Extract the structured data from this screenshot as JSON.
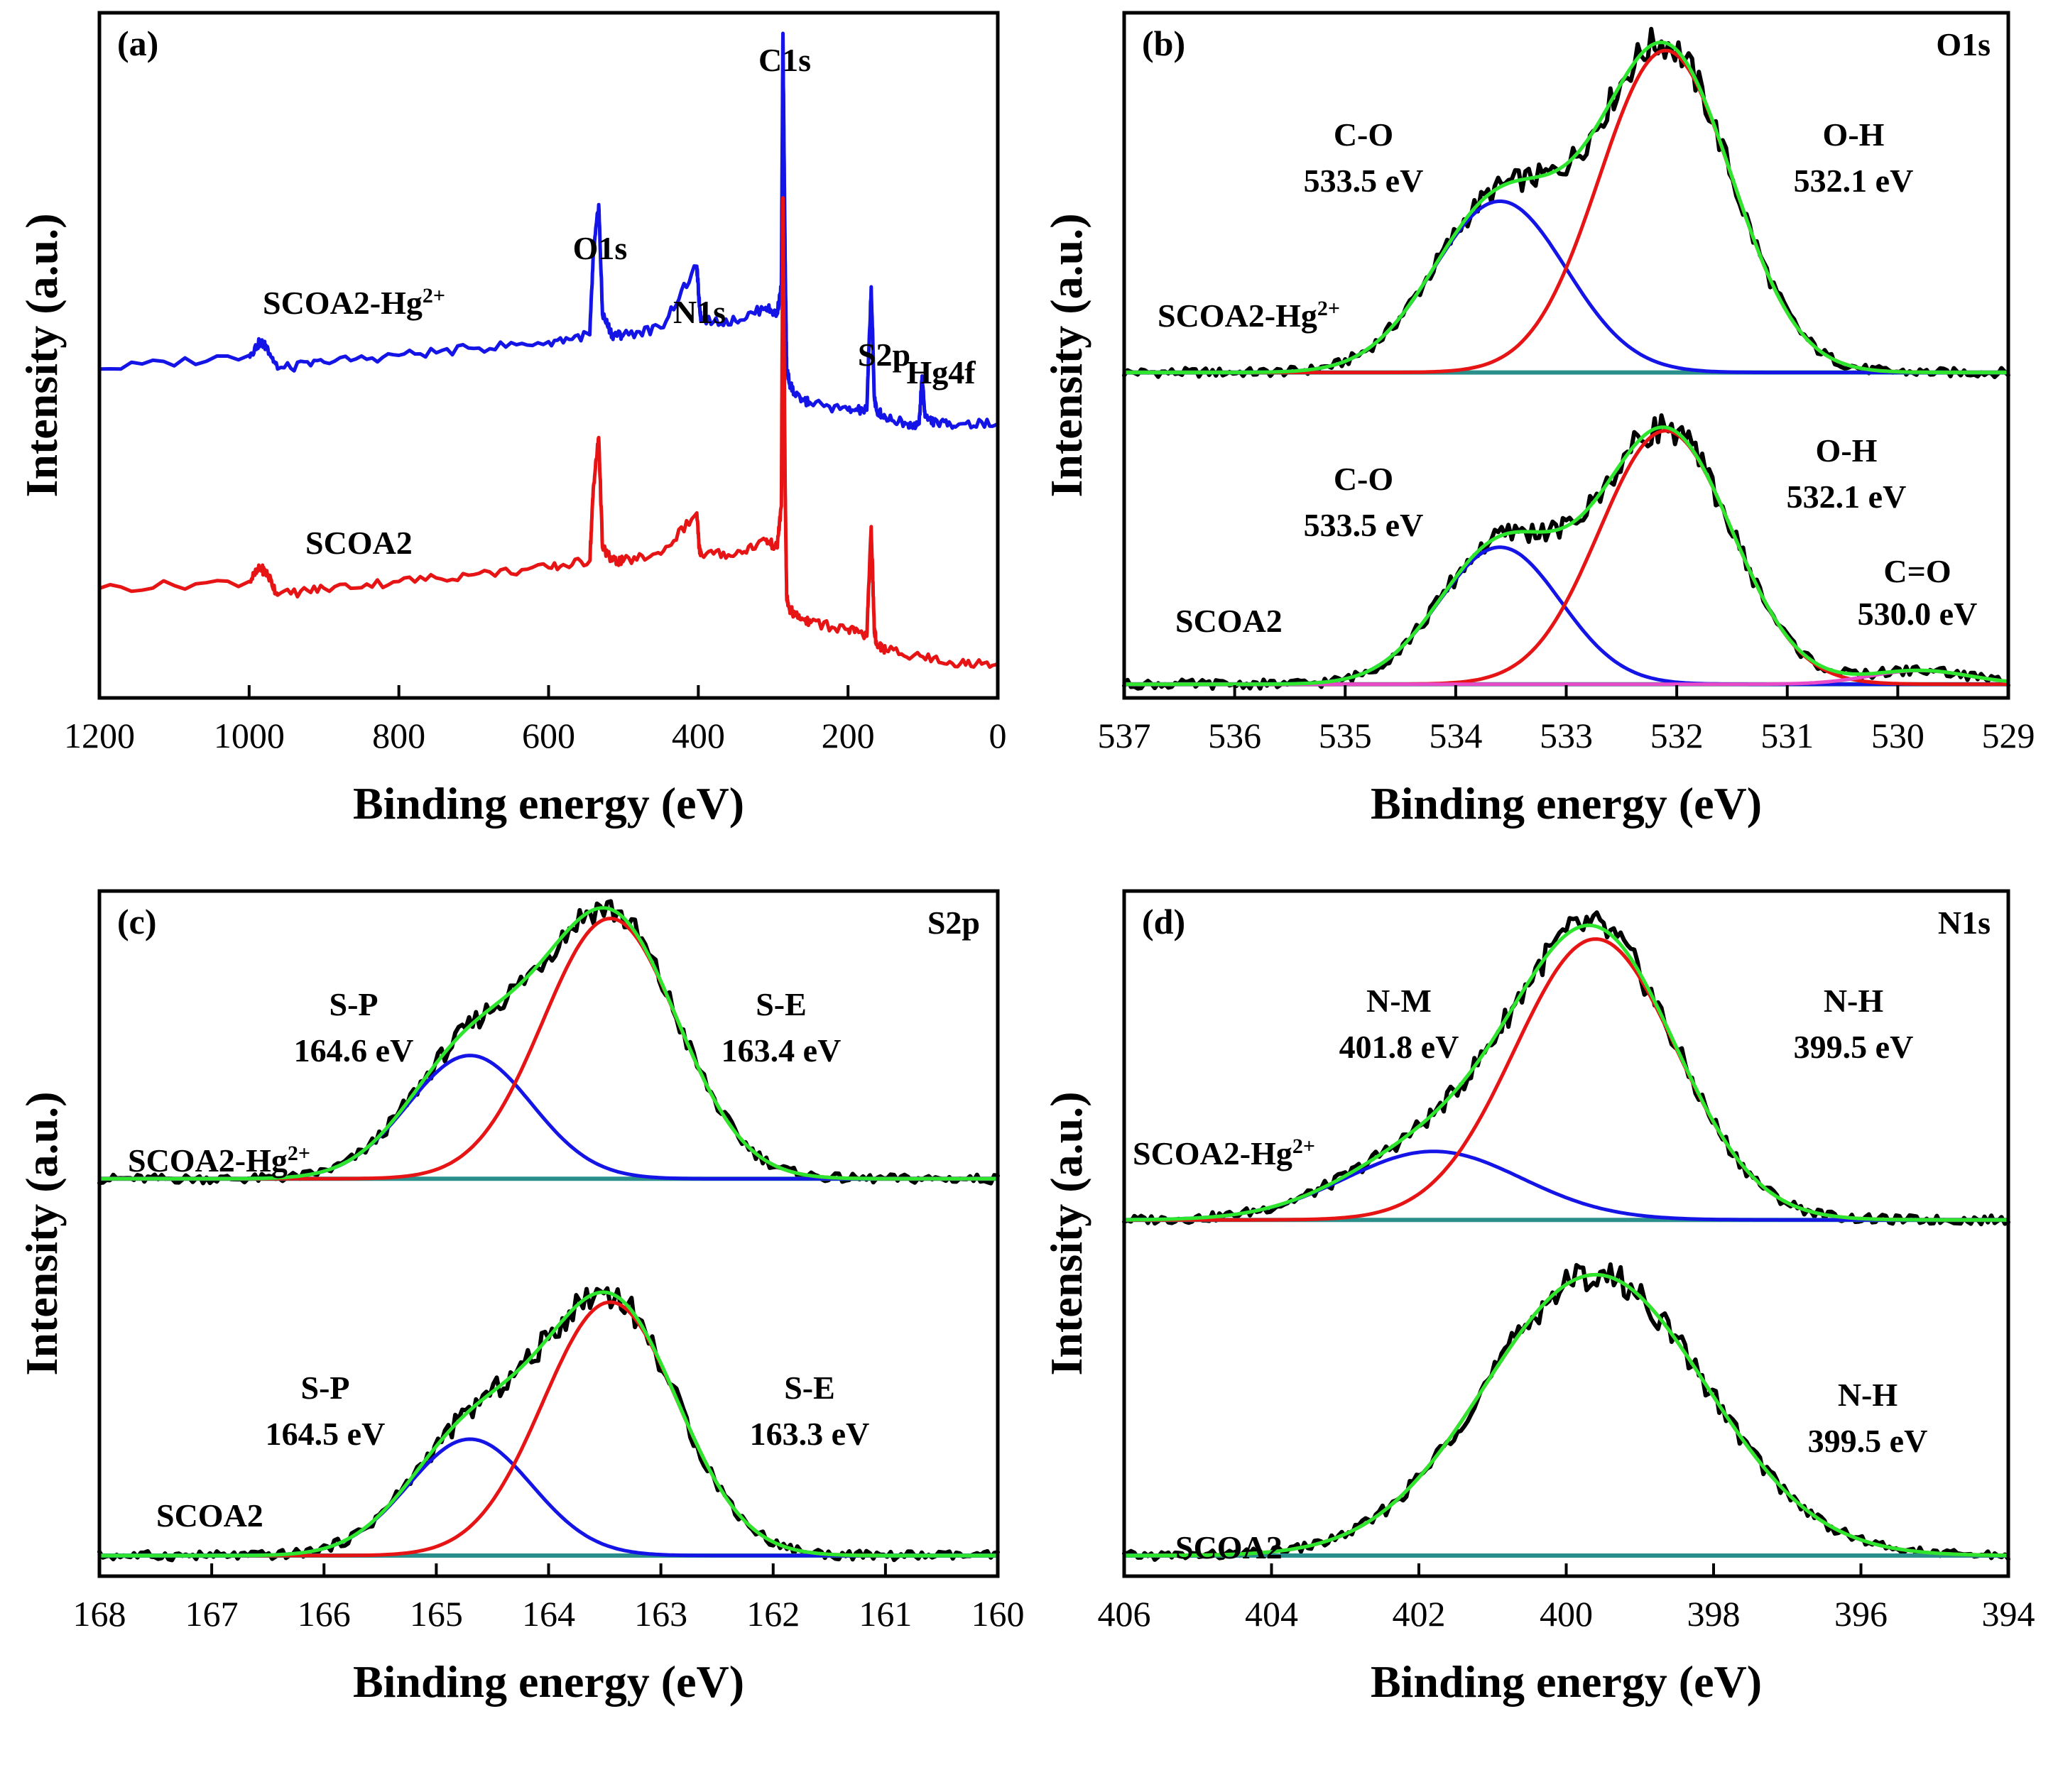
{
  "figure": {
    "xlabel": "Binding energy (eV)",
    "ylabel": "Intensity (a.u.)"
  },
  "chart_data": [
    {
      "type": "line",
      "panel": "(a)",
      "corner_label": "",
      "xlabel": "Binding energy (eV)",
      "ylabel": "Intensity (a.u.)",
      "xlim": [
        1200,
        0
      ],
      "ylim": [
        0,
        100
      ],
      "xticks": [
        "1200",
        "1000",
        "800",
        "600",
        "400",
        "200",
        "0"
      ],
      "annotations": [
        {
          "text": "C1s",
          "x": 285,
          "y": 97
        },
        {
          "text": "O1s",
          "x": 532,
          "y": 72
        },
        {
          "text": "N1s",
          "x": 400,
          "y": 63
        },
        {
          "text": "S2p",
          "x": 168,
          "y": 58
        },
        {
          "text": "Hg4f",
          "x": 101,
          "y": 52
        }
      ],
      "series": [
        {
          "name": "SCOA2-Hg²⁺",
          "color": "#1414e6",
          "x": [
            1200,
            1000,
            985,
            975,
            962,
            900,
            800,
            700,
            600,
            545,
            540,
            533,
            528,
            515,
            500,
            450,
            402,
            399,
            396,
            350,
            310,
            295,
            289,
            287,
            284,
            282,
            278,
            270,
            250,
            200,
            175,
            169,
            165,
            162,
            150,
            120,
            105,
            101,
            97,
            80,
            50,
            0
          ],
          "y": [
            48,
            50,
            52,
            51,
            48,
            49,
            50,
            51,
            52,
            53,
            65,
            72,
            56,
            53,
            53,
            54,
            63,
            58,
            55,
            55,
            57,
            56,
            60,
            97,
            64,
            48,
            46,
            44,
            43,
            42,
            42,
            60,
            44,
            42,
            41,
            40,
            40,
            47,
            41,
            40,
            40,
            40
          ]
        },
        {
          "name": "SCOA2",
          "color": "#e61414",
          "x": [
            1200,
            1000,
            985,
            975,
            962,
            900,
            800,
            700,
            600,
            545,
            540,
            533,
            528,
            515,
            500,
            450,
            402,
            399,
            396,
            350,
            310,
            295,
            289,
            287,
            284,
            282,
            278,
            270,
            250,
            200,
            175,
            169,
            165,
            162,
            150,
            100,
            50,
            0
          ],
          "y": [
            16,
            17,
            19,
            18,
            15,
            16,
            17,
            18,
            19,
            20,
            31,
            38,
            22,
            20,
            20,
            21,
            27,
            22,
            21,
            21,
            23,
            22,
            28,
            73,
            31,
            15,
            13,
            12,
            11,
            10,
            9,
            25,
            10,
            8,
            7,
            6,
            5,
            5
          ]
        }
      ],
      "curve_labels": [
        {
          "text": "SCOA2-Hg",
          "sup": "2+",
          "x": 940,
          "y": 57
        },
        {
          "text": "SCOA2",
          "x": 900,
          "y": 26
        }
      ]
    },
    {
      "type": "line",
      "panel": "(b)",
      "corner_label": "O1s",
      "xlabel": "Binding energy (eV)",
      "ylabel": "Intensity (a.u.)",
      "xlim": [
        537,
        529
      ],
      "ylim": [
        0,
        100
      ],
      "xticks": [
        "537",
        "536",
        "535",
        "534",
        "533",
        "532",
        "531",
        "530",
        "529"
      ],
      "stacks": [
        {
          "baseline": 47.5,
          "label": {
            "text": "SCOA2-Hg",
            "sup": "2+"
          },
          "peaks": [
            {
              "name": "C-O",
              "label": "C-O",
              "energy": "533.5 eV",
              "center": 533.6,
              "height": 25,
              "sigma": 0.6,
              "color": "#1414e6"
            },
            {
              "name": "O-H",
              "label": "O-H",
              "energy": "532.1 eV",
              "center": 532.1,
              "height": 47,
              "sigma": 0.6,
              "color": "#e61414"
            }
          ]
        },
        {
          "baseline": 2,
          "label": {
            "text": "SCOA2"
          },
          "peaks": [
            {
              "name": "C-O",
              "label": "C-O",
              "energy": "533.5 eV",
              "center": 533.6,
              "height": 20,
              "sigma": 0.55,
              "color": "#1414e6"
            },
            {
              "name": "O-H",
              "label": "O-H",
              "energy": "532.1 eV",
              "center": 532.1,
              "height": 37,
              "sigma": 0.6,
              "color": "#e61414"
            },
            {
              "name": "C=O",
              "label": "C=O",
              "energy": "530.0 eV",
              "center": 529.8,
              "height": 2,
              "sigma": 0.45,
              "color": "#e84ac8"
            }
          ]
        }
      ],
      "sum_color": "#2ee62e",
      "baseline_color": "#2a8f8a",
      "raw_color": "#000000"
    },
    {
      "type": "line",
      "panel": "(c)",
      "corner_label": "S2p",
      "xlabel": "Binding energy (eV)",
      "ylabel": "Intensity (a.u.)",
      "xlim": [
        168,
        160
      ],
      "ylim": [
        0,
        100
      ],
      "xticks": [
        "168",
        "167",
        "166",
        "165",
        "164",
        "163",
        "162",
        "161",
        "160"
      ],
      "stacks": [
        {
          "baseline": 58,
          "label": {
            "text": "SCOA2-Hg",
            "sup": "2+"
          },
          "peaks": [
            {
              "name": "S-P",
              "label": "S-P",
              "energy": "164.6 eV",
              "center": 164.7,
              "height": 18,
              "sigma": 0.55,
              "color": "#1414e6"
            },
            {
              "name": "S-E",
              "label": "S-E",
              "energy": "163.4 eV",
              "center": 163.45,
              "height": 38,
              "sigma": 0.6,
              "color": "#e61414"
            }
          ]
        },
        {
          "baseline": 3,
          "label": {
            "text": "SCOA2"
          },
          "peaks": [
            {
              "name": "S-P",
              "label": "S-P",
              "energy": "164.5 eV",
              "center": 164.7,
              "height": 17,
              "sigma": 0.55,
              "color": "#1414e6"
            },
            {
              "name": "S-E",
              "label": "S-E",
              "energy": "163.3 eV",
              "center": 163.45,
              "height": 37,
              "sigma": 0.6,
              "color": "#e61414"
            }
          ]
        }
      ],
      "sum_color": "#2ee62e",
      "baseline_color": "#2a8f8a",
      "raw_color": "#000000"
    },
    {
      "type": "line",
      "panel": "(d)",
      "corner_label": "N1s",
      "xlabel": "Binding energy (eV)",
      "ylabel": "Intensity (a.u.)",
      "xlim": [
        406,
        394
      ],
      "ylim": [
        0,
        100
      ],
      "xticks": [
        "406",
        "404",
        "402",
        "400",
        "398",
        "396",
        "394"
      ],
      "stacks": [
        {
          "baseline": 52,
          "label": {
            "text": "SCOA2-Hg",
            "sup": "2+"
          },
          "peaks": [
            {
              "name": "N-M",
              "label": "N-M",
              "energy": "401.8 eV",
              "center": 401.8,
              "height": 10,
              "sigma": 1.2,
              "color": "#1414e6"
            },
            {
              "name": "N-H",
              "label": "N-H",
              "energy": "399.5 eV",
              "center": 399.6,
              "height": 41,
              "sigma": 1.1,
              "color": "#e61414"
            }
          ]
        },
        {
          "baseline": 3,
          "label": {
            "text": "SCOA2"
          },
          "peaks": [
            {
              "name": "N-H",
              "label": "N-H",
              "energy": "399.5 eV",
              "center": 399.6,
              "height": 41,
              "sigma": 1.5,
              "color": "#e61414"
            }
          ]
        }
      ],
      "sum_color": "#2ee62e",
      "baseline_color": "#2a8f8a",
      "raw_color": "#000000"
    }
  ]
}
